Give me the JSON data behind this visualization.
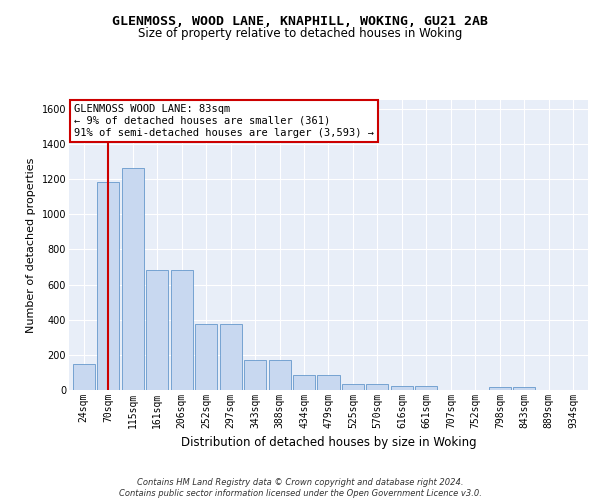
{
  "title_line1": "GLENMOSS, WOOD LANE, KNAPHILL, WOKING, GU21 2AB",
  "title_line2": "Size of property relative to detached houses in Woking",
  "xlabel": "Distribution of detached houses by size in Woking",
  "ylabel": "Number of detached properties",
  "categories": [
    "24sqm",
    "70sqm",
    "115sqm",
    "161sqm",
    "206sqm",
    "252sqm",
    "297sqm",
    "343sqm",
    "388sqm",
    "434sqm",
    "479sqm",
    "525sqm",
    "570sqm",
    "616sqm",
    "661sqm",
    "707sqm",
    "752sqm",
    "798sqm",
    "843sqm",
    "889sqm",
    "934sqm"
  ],
  "values": [
    150,
    1185,
    1265,
    685,
    685,
    375,
    375,
    170,
    170,
    85,
    85,
    35,
    35,
    22,
    22,
    0,
    0,
    15,
    15,
    0,
    0
  ],
  "bar_color": "#c8d8f0",
  "bar_edge_color": "#6699cc",
  "vline_x_idx": 1,
  "vline_color": "#cc0000",
  "annotation_text": "GLENMOSS WOOD LANE: 83sqm\n← 9% of detached houses are smaller (361)\n91% of semi-detached houses are larger (3,593) →",
  "annotation_box_facecolor": "#ffffff",
  "annotation_box_edgecolor": "#cc0000",
  "ylim": [
    0,
    1650
  ],
  "yticks": [
    0,
    200,
    400,
    600,
    800,
    1000,
    1200,
    1400,
    1600
  ],
  "footer": "Contains HM Land Registry data © Crown copyright and database right 2024.\nContains public sector information licensed under the Open Government Licence v3.0.",
  "fig_facecolor": "#ffffff",
  "axes_facecolor": "#e8eef8",
  "grid_color": "#ffffff",
  "title1_fontsize": 9.5,
  "title2_fontsize": 8.5,
  "ylabel_fontsize": 8,
  "xlabel_fontsize": 8.5,
  "tick_fontsize": 7,
  "annotation_fontsize": 7.5,
  "footer_fontsize": 6
}
